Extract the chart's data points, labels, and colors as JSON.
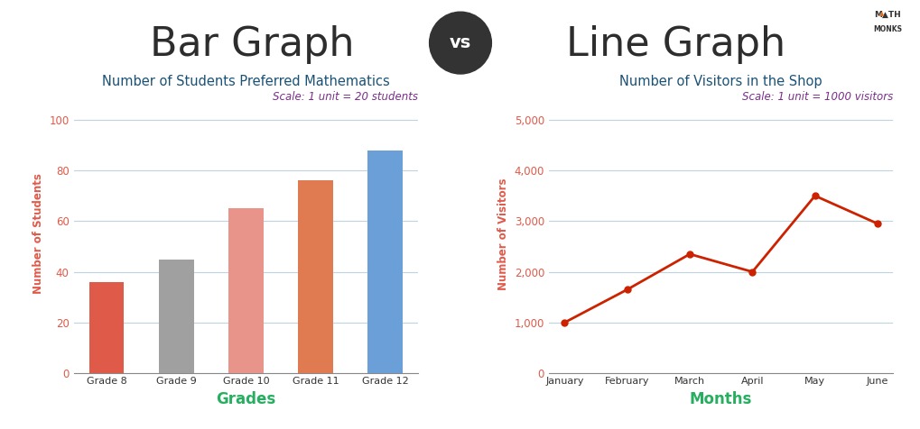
{
  "main_title_left": "Bar Graph",
  "main_title_right": "Line Graph",
  "main_title_fontsize": 32,
  "main_title_color": "#2d2d2d",
  "bar_chart_title": "Number of Students Preferred Mathematics",
  "bar_chart_title_color": "#1a5276",
  "bar_chart_title_fontsize": 10.5,
  "bar_scale_text": "Scale: 1 unit = 20 students",
  "bar_scale_color": "#7b2d8b",
  "bar_scale_fontsize": 8.5,
  "bar_categories": [
    "Grade 8",
    "Grade 9",
    "Grade 10",
    "Grade 11",
    "Grade 12"
  ],
  "bar_values": [
    36,
    45,
    65,
    76,
    88
  ],
  "bar_colors": [
    "#e05a4a",
    "#a0a0a0",
    "#e8948a",
    "#e07a50",
    "#6a9fd8"
  ],
  "bar_xlabel": "Grades",
  "bar_ylabel": "Number of Students",
  "bar_ylabel_color": "#e05a4a",
  "bar_xlabel_color": "#27ae60",
  "bar_ylim": [
    0,
    110
  ],
  "bar_yticks": [
    0,
    20,
    40,
    60,
    80,
    100
  ],
  "line_chart_title": "Number of Visitors in the Shop",
  "line_chart_title_color": "#1a5276",
  "line_chart_title_fontsize": 10.5,
  "line_scale_text": "Scale: 1 unit = 1000 visitors",
  "line_scale_color": "#7b2d8b",
  "line_scale_fontsize": 8.5,
  "line_categories": [
    "January",
    "February",
    "March",
    "April",
    "May",
    "June"
  ],
  "line_values": [
    1000,
    1650,
    2350,
    2000,
    3500,
    2950
  ],
  "line_color": "#cc2200",
  "line_xlabel": "Months",
  "line_ylabel": "Number of Visitors",
  "line_ylabel_color": "#e05a4a",
  "line_xlabel_color": "#27ae60",
  "line_ylim": [
    0,
    5500
  ],
  "line_yticks": [
    0,
    1000,
    2000,
    3000,
    4000,
    5000
  ],
  "line_yticklabels": [
    "0",
    "1,000",
    "2,000",
    "3,000",
    "4,000",
    "5,000"
  ],
  "grid_color": "#b0c8d8",
  "grid_alpha": 0.8,
  "axis_color": "#888888",
  "vs_circle_color": "#333333",
  "vs_text_color": "#ffffff",
  "math_monks_color": "#333333",
  "math_monks_accent": "#e07020",
  "background_color": "#ffffff"
}
